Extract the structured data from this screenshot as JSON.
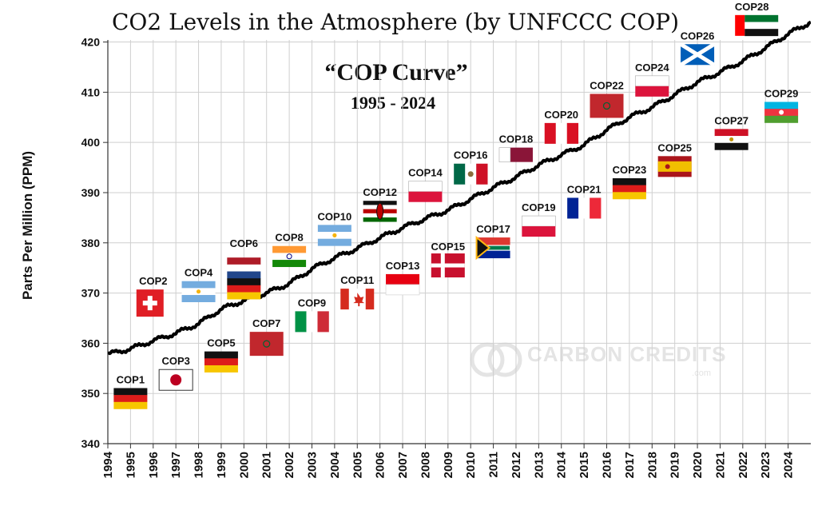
{
  "chart_data": {
    "type": "line",
    "title": "CO2 Levels in the Atmosphere (by UNFCCC COP)",
    "subtitle_line1": "“COP Curve”",
    "subtitle_line2": "1995 - 2024",
    "xlabel": "",
    "ylabel": "Parts Per Million (PPM)",
    "xlim": [
      1994,
      2025
    ],
    "ylim": [
      340,
      422
    ],
    "y_ticks": [
      340,
      350,
      360,
      370,
      380,
      390,
      400,
      410,
      420
    ],
    "x_ticks": [
      "1994",
      "1995",
      "1996",
      "1997",
      "1998",
      "1999",
      "2000",
      "2001",
      "2002",
      "2003",
      "2004",
      "2005",
      "2006",
      "2007",
      "2008",
      "2009",
      "2010",
      "2011",
      "2012",
      "2013",
      "2014",
      "2015",
      "2016",
      "2017",
      "2018",
      "2019",
      "2020",
      "2021",
      "2022",
      "2023",
      "2024"
    ],
    "grid": true,
    "series": [
      {
        "x": [
          1994,
          1995,
          1996,
          1997,
          1998,
          1999,
          2000,
          2001,
          2002,
          2003,
          2004,
          2005,
          2006,
          2007,
          2008,
          2009,
          2010,
          2011,
          2012,
          2013,
          2014,
          2015,
          2016,
          2017,
          2018,
          2019,
          2020,
          2021,
          2022,
          2023,
          2024,
          2025
        ],
        "values": [
          357.8,
          358.9,
          360.5,
          362.0,
          363.9,
          366.8,
          368.5,
          370.0,
          371.9,
          374.8,
          377.0,
          378.9,
          381.0,
          383.0,
          384.8,
          386.5,
          388.7,
          391.0,
          393.1,
          395.5,
          397.5,
          399.5,
          402.5,
          405.0,
          407.0,
          409.5,
          412.0,
          414.0,
          416.2,
          418.8,
          421.6,
          424.0
        ]
      }
    ],
    "annotations": [
      {
        "label": "COP1",
        "year": 1995,
        "value": 349.0,
        "flag": "germany"
      },
      {
        "label": "COP2",
        "year": 1996,
        "value": 368.0,
        "flag": "switzerland"
      },
      {
        "label": "COP3",
        "year": 1997,
        "value": 352.7,
        "flag": "japan"
      },
      {
        "label": "COP4",
        "year": 1998,
        "value": 370.3,
        "flag": "argentina"
      },
      {
        "label": "COP5",
        "year": 1999,
        "value": 356.3,
        "flag": "germany"
      },
      {
        "label": "COP6",
        "year": 2000,
        "value": 375.0,
        "flag": "netherlands-germany"
      },
      {
        "label": "COP7",
        "year": 2001,
        "value": 360.2,
        "flag": "morocco"
      },
      {
        "label": "COP8",
        "year": 2002,
        "value": 377.3,
        "flag": "india"
      },
      {
        "label": "COP9",
        "year": 2003,
        "value": 364.3,
        "flag": "italy"
      },
      {
        "label": "COP10",
        "year": 2004,
        "value": 381.5,
        "flag": "argentina"
      },
      {
        "label": "COP11",
        "year": 2005,
        "value": 368.8,
        "flag": "canada"
      },
      {
        "label": "COP12",
        "year": 2006,
        "value": 386.3,
        "flag": "kenya"
      },
      {
        "label": "COP13",
        "year": 2007,
        "value": 371.7,
        "flag": "indonesia"
      },
      {
        "label": "COP14",
        "year": 2008,
        "value": 390.2,
        "flag": "poland"
      },
      {
        "label": "COP15",
        "year": 2009,
        "value": 375.5,
        "flag": "denmark"
      },
      {
        "label": "COP16",
        "year": 2010,
        "value": 393.7,
        "flag": "mexico"
      },
      {
        "label": "COP17",
        "year": 2011,
        "value": 379.0,
        "flag": "south-africa"
      },
      {
        "label": "COP18",
        "year": 2012,
        "value": 396.9,
        "flag": "qatar"
      },
      {
        "label": "COP19",
        "year": 2013,
        "value": 383.3,
        "flag": "poland"
      },
      {
        "label": "COP20",
        "year": 2014,
        "value": 401.8,
        "flag": "peru"
      },
      {
        "label": "COP21",
        "year": 2015,
        "value": 386.9,
        "flag": "france"
      },
      {
        "label": "COP22",
        "year": 2016,
        "value": 407.6,
        "flag": "morocco"
      },
      {
        "label": "COP23",
        "year": 2017,
        "value": 390.8,
        "flag": "germany"
      },
      {
        "label": "COP24",
        "year": 2018,
        "value": 411.2,
        "flag": "poland"
      },
      {
        "label": "COP25",
        "year": 2019,
        "value": 395.2,
        "flag": "spain"
      },
      {
        "label": "COP26",
        "year": 2020,
        "value": 417.5,
        "flag": "scotland"
      },
      {
        "label": "COP27",
        "year": 2021.5,
        "value": 400.6,
        "flag": "egypt"
      },
      {
        "label": "COP28",
        "year": 2022.4,
        "value": 423.3,
        "flag": "uae"
      },
      {
        "label": "COP29",
        "year": 2023.7,
        "value": 406.0,
        "flag": "azerbaijan"
      }
    ]
  },
  "watermark": {
    "text": "CARBON CREDITS",
    "sub": ".com"
  },
  "colors": {
    "line": "#000000",
    "grid": "#cfcfcf",
    "axis": "#333333"
  }
}
